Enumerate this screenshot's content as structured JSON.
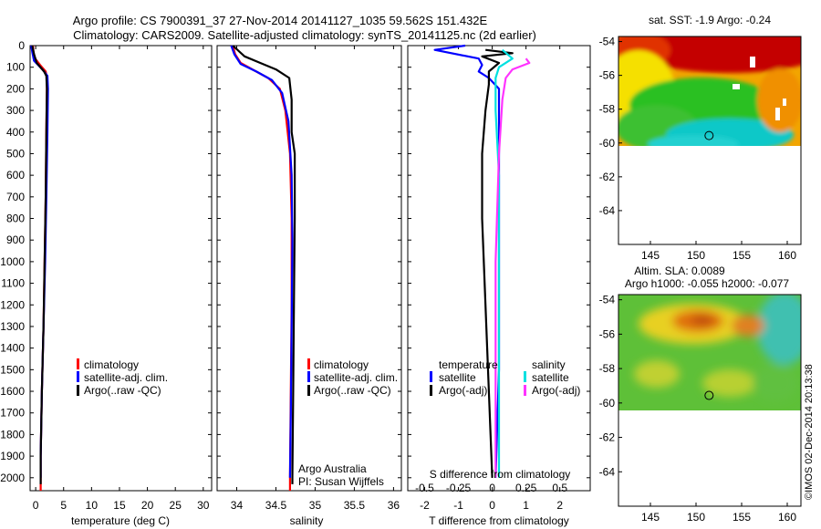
{
  "header": {
    "title_line1": "Argo profile: CS 7900391_37 27-Nov-2014 20141127_1035 59.562S 151.432E",
    "title_line2": "Climatology: CARS2009. Satellite-adjusted climatology: synTS_20141125.nc (2d earlier)"
  },
  "depth_ticks": [
    0,
    100,
    200,
    300,
    400,
    500,
    600,
    700,
    800,
    900,
    1000,
    1100,
    1200,
    1300,
    1400,
    1500,
    1600,
    1700,
    1800,
    1900,
    2000
  ],
  "colors": {
    "climatology": "#ff0000",
    "satellite": "#0000ff",
    "argo": "#000000",
    "sal_satellite": "#00e0e0",
    "sal_argo": "#ff33ff"
  },
  "chart_data": [
    {
      "type": "line",
      "id": "temperature",
      "xlabel": "temperature (deg C)",
      "ylabel": "depth",
      "xlim": [
        -1,
        31.5
      ],
      "ylim": [
        2060,
        0
      ],
      "xticks": [
        0,
        5,
        10,
        15,
        20,
        25,
        30
      ],
      "legend": [
        "climatology",
        "satellite-adj. clim.",
        "Argo(..raw -QC)"
      ],
      "series": [
        {
          "name": "climatology",
          "color": "#ff0000",
          "points": [
            [
              -0.5,
              0
            ],
            [
              -0.4,
              30
            ],
            [
              -0.1,
              60
            ],
            [
              0.8,
              90
            ],
            [
              1.8,
              120
            ],
            [
              2.0,
              150
            ],
            [
              2.0,
              200
            ],
            [
              1.9,
              400
            ],
            [
              1.8,
              700
            ],
            [
              1.6,
              1000
            ],
            [
              1.4,
              1300
            ],
            [
              1.1,
              1600
            ],
            [
              0.9,
              1900
            ],
            [
              0.9,
              2060
            ]
          ]
        },
        {
          "name": "satellite-adj. clim.",
          "color": "#0000ff",
          "points": [
            [
              -0.8,
              0
            ],
            [
              -0.6,
              30
            ],
            [
              -0.3,
              70
            ],
            [
              1.2,
              110
            ],
            [
              2.1,
              140
            ],
            [
              2.2,
              200
            ],
            [
              2.1,
              400
            ],
            [
              1.9,
              700
            ],
            [
              1.7,
              1000
            ],
            [
              1.4,
              1300
            ],
            [
              1.1,
              1600
            ],
            [
              0.9,
              1900
            ],
            [
              0.9,
              2000
            ]
          ]
        },
        {
          "name": "Argo(..raw -QC)",
          "color": "#000000",
          "points": [
            [
              -0.6,
              0
            ],
            [
              -0.3,
              40
            ],
            [
              0.2,
              80
            ],
            [
              1.5,
              120
            ],
            [
              1.9,
              140
            ],
            [
              2.0,
              200
            ],
            [
              1.9,
              400
            ],
            [
              1.8,
              700
            ],
            [
              1.6,
              1000
            ],
            [
              1.4,
              1300
            ],
            [
              1.1,
              1600
            ],
            [
              0.9,
              1900
            ],
            [
              0.9,
              2030
            ]
          ]
        }
      ]
    },
    {
      "type": "line",
      "id": "salinity",
      "xlabel": "salinity",
      "ylabel": "depth",
      "xlim": [
        33.75,
        36.1
      ],
      "ylim": [
        2060,
        0
      ],
      "xticks": [
        34,
        34.5,
        35,
        35.5,
        36
      ],
      "xtick_labels": [
        "34",
        "34.5",
        "35",
        "35.5",
        "36"
      ],
      "legend": [
        "climatology",
        "satellite-adj. clim.",
        "Argo(..raw -QC)"
      ],
      "annotation": [
        "Argo Australia",
        "PI: Susan Wijffels"
      ],
      "series": [
        {
          "name": "climatology",
          "color": "#ff0000",
          "points": [
            [
              33.95,
              0
            ],
            [
              33.98,
              40
            ],
            [
              34.05,
              80
            ],
            [
              34.2,
              110
            ],
            [
              34.4,
              150
            ],
            [
              34.55,
              200
            ],
            [
              34.62,
              300
            ],
            [
              34.68,
              500
            ],
            [
              34.7,
              800
            ],
            [
              34.7,
              1200
            ],
            [
              34.69,
              1600
            ],
            [
              34.68,
              2000
            ],
            [
              34.68,
              2060
            ]
          ]
        },
        {
          "name": "satellite-adj. clim.",
          "color": "#0000ff",
          "points": [
            [
              33.93,
              0
            ],
            [
              33.97,
              40
            ],
            [
              34.05,
              85
            ],
            [
              34.25,
              120
            ],
            [
              34.45,
              160
            ],
            [
              34.58,
              220
            ],
            [
              34.66,
              350
            ],
            [
              34.7,
              600
            ],
            [
              34.71,
              900
            ],
            [
              34.7,
              1300
            ],
            [
              34.69,
              1700
            ],
            [
              34.68,
              2000
            ]
          ]
        },
        {
          "name": "Argo(..raw -QC)",
          "color": "#000000",
          "points": [
            [
              33.95,
              0
            ],
            [
              34.1,
              50
            ],
            [
              34.3,
              80
            ],
            [
              34.5,
              110
            ],
            [
              34.67,
              150
            ],
            [
              34.7,
              250
            ],
            [
              34.7,
              400
            ],
            [
              34.74,
              500
            ],
            [
              34.74,
              800
            ],
            [
              34.73,
              1200
            ],
            [
              34.72,
              1600
            ],
            [
              34.71,
              2000
            ],
            [
              34.71,
              2030
            ]
          ]
        }
      ]
    },
    {
      "type": "line",
      "id": "differences",
      "xlabel": "T difference from climatology",
      "xlabel_top": "S difference from climatology",
      "xlim": [
        -2.5,
        2.9
      ],
      "ylim": [
        2060,
        0
      ],
      "xticks": [
        -2,
        -1,
        0,
        1,
        2
      ],
      "s_ticks": [
        -0.5,
        -0.25,
        0,
        0.25,
        0.5
      ],
      "s_tick_labels": [
        "-0.5",
        "-0.25",
        "0",
        "0.25",
        "0.5"
      ],
      "legend_temperature": {
        "heading": "temperature",
        "entries": [
          "satellite",
          "Argo(-adj)"
        ]
      },
      "legend_salinity": {
        "heading": "salinity",
        "entries": [
          "satellite",
          "Argo(-adj)"
        ]
      },
      "series": [
        {
          "name": "T satellite",
          "color": "#0000ff",
          "points": [
            [
              -0.8,
              0
            ],
            [
              -1.7,
              20
            ],
            [
              -0.4,
              60
            ],
            [
              -0.3,
              90
            ],
            [
              -0.4,
              120
            ],
            [
              -0.1,
              150
            ],
            [
              0.2,
              200
            ],
            [
              0.2,
              500
            ],
            [
              0.2,
              1000
            ],
            [
              0.2,
              1500
            ],
            [
              0.1,
              2000
            ]
          ]
        },
        {
          "name": "T Argo(-adj)",
          "color": "#000000",
          "points": [
            [
              -0.2,
              20
            ],
            [
              0.6,
              35
            ],
            [
              -0.3,
              50
            ],
            [
              0.2,
              80
            ],
            [
              -0.1,
              120
            ],
            [
              -0.1,
              180
            ],
            [
              -0.2,
              300
            ],
            [
              -0.3,
              500
            ],
            [
              -0.3,
              800
            ],
            [
              -0.2,
              1200
            ],
            [
              -0.1,
              1600
            ],
            [
              0.0,
              2000
            ]
          ]
        },
        {
          "name": "S satellite",
          "color": "#00e0e0",
          "points": [
            [
              0.3,
              20
            ],
            [
              0.6,
              60
            ],
            [
              0.2,
              100
            ],
            [
              0.1,
              150
            ],
            [
              0.1,
              300
            ],
            [
              0.2,
              600
            ],
            [
              0.2,
              1000
            ],
            [
              0.2,
              1400
            ],
            [
              0.2,
              1800
            ],
            [
              0.2,
              2000
            ]
          ]
        },
        {
          "name": "S Argo(-adj)",
          "color": "#ff33ff",
          "points": [
            [
              1.0,
              60
            ],
            [
              1.1,
              80
            ],
            [
              0.6,
              110
            ],
            [
              0.4,
              150
            ],
            [
              0.3,
              250
            ],
            [
              0.2,
              500
            ],
            [
              0.1,
              1000
            ],
            [
              0.1,
              1500
            ],
            [
              0.1,
              2000
            ]
          ]
        }
      ]
    },
    {
      "type": "heatmap",
      "id": "sst_map",
      "title": "sat. SST: -1.9 Argo: -0.24",
      "xlim": [
        141.5,
        161.5
      ],
      "ylim": [
        -66,
        -53.7
      ],
      "xticks": [
        145,
        150,
        155,
        160
      ],
      "yticks": [
        -54,
        -56,
        -58,
        -60,
        -62,
        -64
      ],
      "argo_position": [
        151.43,
        -59.56
      ]
    },
    {
      "type": "heatmap",
      "id": "sla_map",
      "title_line1": "Altim. SLA: 0.0089",
      "title_line2": "Argo h1000: -0.055 h2000: -0.077",
      "xlim": [
        141.5,
        161.5
      ],
      "ylim": [
        -66,
        -53.7
      ],
      "xticks": [
        145,
        150,
        155,
        160
      ],
      "yticks": [
        -54,
        -56,
        -58,
        -60,
        -62,
        -64
      ],
      "argo_position": [
        151.43,
        -59.56
      ]
    }
  ],
  "credit": "©IMOS 02-Dec-2014 20:13:38"
}
